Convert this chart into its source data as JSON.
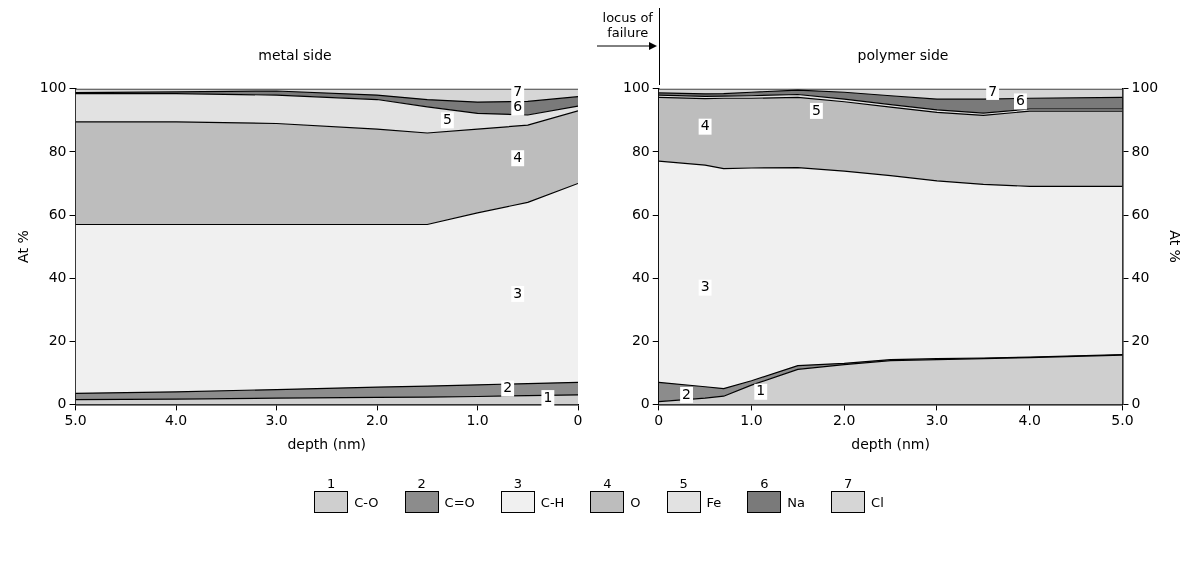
{
  "chart_data": [
    {
      "type": "area",
      "title": "metal side",
      "xlabel": "depth (nm)",
      "ylabel": "At %",
      "stacked": true,
      "legend": "bottom",
      "grid": false,
      "x": [
        5,
        4,
        3,
        2,
        1.5,
        1,
        0.5,
        0
      ],
      "xlim": [
        5,
        0
      ],
      "xticks": [
        {
          "value": 5,
          "label": "5.0"
        },
        {
          "value": 4,
          "label": "4.0"
        },
        {
          "value": 3,
          "label": "3.0"
        },
        {
          "value": 2,
          "label": "2.0"
        },
        {
          "value": 1,
          "label": "1.0"
        },
        0
      ],
      "ylim": [
        0,
        100
      ],
      "yticks": [
        0,
        20,
        40,
        60,
        80,
        100
      ],
      "series": [
        {
          "name": "C-O",
          "color": "#cfcfcf",
          "values": [
            1.5,
            1.7,
            2,
            2.2,
            2.3,
            2.5,
            2.8,
            3
          ]
        },
        {
          "name": "C=O",
          "color": "#8c8c8c",
          "values": [
            2,
            2.3,
            2.7,
            3.3,
            3.5,
            3.7,
            3.8,
            4
          ]
        },
        {
          "name": "C-H",
          "color": "#f0f0f0",
          "values": [
            53.5,
            53,
            52.3,
            51.5,
            51.2,
            54.5,
            57.4,
            63
          ]
        },
        {
          "name": "O",
          "color": "#bdbdbd",
          "values": [
            32.5,
            32.5,
            32,
            30.2,
            29,
            26.5,
            24.5,
            23
          ]
        },
        {
          "name": "Fe",
          "color": "#e2e2e2",
          "values": [
            9,
            9,
            9,
            9.4,
            8.3,
            5,
            3.2,
            1.5
          ]
        },
        {
          "name": "Na",
          "color": "#7a7a7a",
          "values": [
            0.3,
            0.5,
            1.3,
            1.4,
            2.3,
            3.6,
            4.3,
            3
          ]
        },
        {
          "name": "Cl",
          "color": "#d6d6d6",
          "values": [
            1.2,
            1,
            0.7,
            2,
            3.4,
            4.2,
            4,
            2.5
          ]
        }
      ],
      "annotations": [
        {
          "text": "1",
          "x": 0.3,
          "y": 2
        },
        {
          "text": "2",
          "x": 0.7,
          "y": 5
        },
        {
          "text": "3",
          "x": 0.6,
          "y": 35
        },
        {
          "text": "4",
          "x": 0.6,
          "y": 78
        },
        {
          "text": "5",
          "x": 1.3,
          "y": 90
        },
        {
          "text": "6",
          "x": 0.6,
          "y": 94
        },
        {
          "text": "7",
          "x": 0.6,
          "y": 99
        }
      ]
    },
    {
      "type": "area",
      "title": "polymer side",
      "xlabel": "depth (nm)",
      "y2label": "At %",
      "stacked": true,
      "grid": false,
      "x": [
        0,
        0.5,
        0.7,
        1,
        1.5,
        2,
        2.5,
        3,
        3.5,
        4,
        5
      ],
      "xlim": [
        0,
        5
      ],
      "xticks": [
        0,
        {
          "value": 1,
          "label": "1.0"
        },
        {
          "value": 2,
          "label": "2.0"
        },
        {
          "value": 3,
          "label": "3.0"
        },
        {
          "value": 4,
          "label": "4.0"
        },
        {
          "value": 5,
          "label": "5.0"
        }
      ],
      "ylim": [
        0,
        100
      ],
      "yticks": [
        0,
        20,
        40,
        60,
        80,
        100
      ],
      "y2lim": [
        0,
        100
      ],
      "y2ticks": [
        0,
        20,
        40,
        60,
        80,
        100
      ],
      "series": [
        {
          "color": "#cfcfcf",
          "values": [
            0.9,
            2,
            2.6,
            6.1,
            11.1,
            12.6,
            13.9,
            14.2,
            14.5,
            14.8,
            15.6
          ]
        },
        {
          "color": "#8c8c8c",
          "values": [
            6.1,
            3.6,
            2.4,
            1.4,
            1.2,
            0.4,
            0.3,
            0.3,
            0.2,
            0.2,
            0.2
          ]
        },
        {
          "color": "#f0f0f0",
          "values": [
            70.1,
            70.2,
            69.7,
            67.4,
            62.7,
            60.9,
            58.3,
            56.3,
            55,
            54.1,
            53.3
          ]
        },
        {
          "color": "#bdbdbd",
          "values": [
            20.2,
            21.1,
            22.3,
            22.1,
            22.3,
            22,
            21.7,
            21.7,
            21.9,
            23.8,
            23.8
          ]
        },
        {
          "color": "#e2e2e2",
          "values": [
            0.7,
            0.7,
            0.7,
            0.8,
            0.9,
            0.8,
            0.8,
            0.8,
            0.7,
            0.7,
            0.7
          ]
        },
        {
          "color": "#7a7a7a",
          "values": [
            0.7,
            0.8,
            0.8,
            1.1,
            1.4,
            2.2,
            2.8,
            3.4,
            4.4,
            3.4,
            3.7
          ]
        },
        {
          "color": "#d6d6d6",
          "values": [
            1.3,
            1.6,
            1.5,
            1.1,
            0.4,
            1.1,
            2.2,
            3.3,
            3.3,
            3,
            2.7
          ]
        }
      ],
      "annotations": [
        "locus of failure",
        {
          "text": "1",
          "x": 1.1,
          "y": 4
        },
        {
          "text": "2",
          "x": 0.3,
          "y": 3
        },
        {
          "text": "3",
          "x": 0.5,
          "y": 37
        },
        {
          "text": "4",
          "x": 0.5,
          "y": 88
        },
        {
          "text": "5",
          "x": 1.7,
          "y": 93
        },
        {
          "text": "6",
          "x": 3.9,
          "y": 96
        },
        {
          "text": "7",
          "x": 3.6,
          "y": 99
        }
      ]
    }
  ]
}
